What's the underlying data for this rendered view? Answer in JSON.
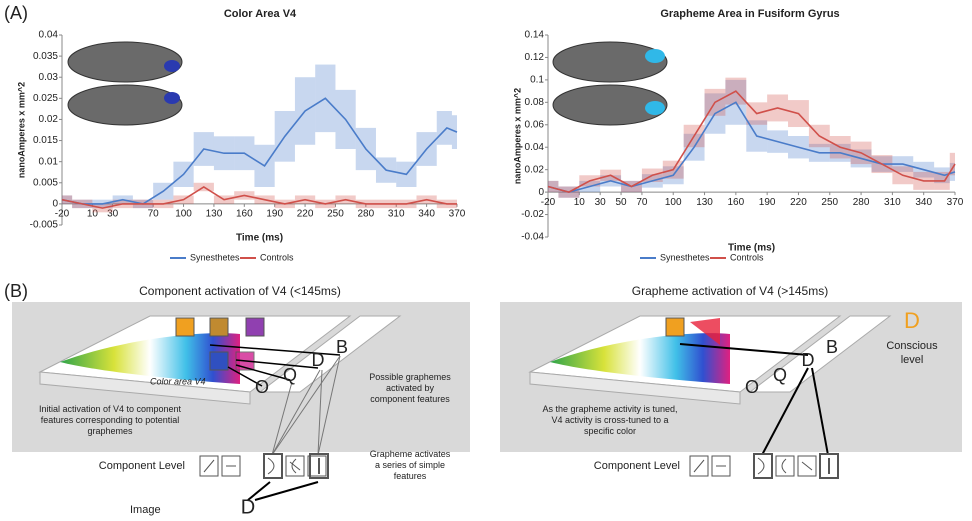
{
  "panel_labels": [
    "(A)",
    "(B)"
  ],
  "chart_data": [
    {
      "type": "line",
      "title": "Color Area V4",
      "y_label": "nanoAmperes x mm^2",
      "x_label": "Time (ms)",
      "x": [
        -20,
        0,
        20,
        40,
        60,
        80,
        100,
        120,
        140,
        160,
        180,
        200,
        220,
        240,
        260,
        280,
        300,
        320,
        340,
        360,
        370
      ],
      "xlim": [
        -20,
        370
      ],
      "xticks": [
        -20,
        10,
        30,
        70,
        100,
        130,
        160,
        190,
        220,
        250,
        280,
        310,
        340,
        370
      ],
      "ylim": [
        -0.005,
        0.04
      ],
      "yticks": [
        -0.005,
        0,
        0.005,
        0.01,
        0.015,
        0.02,
        0.025,
        0.03,
        0.035,
        0.04
      ],
      "series": [
        {
          "name": "Synesthetes",
          "color": "#4a7cc9",
          "values": [
            0.001,
            0,
            0,
            0.001,
            0,
            0.003,
            0.007,
            0.013,
            0.012,
            0.012,
            0.009,
            0.016,
            0.022,
            0.025,
            0.02,
            0.013,
            0.008,
            0.007,
            0.013,
            0.018,
            0.017
          ],
          "errors": [
            0.001,
            0.001,
            0.001,
            0.001,
            0.001,
            0.002,
            0.003,
            0.004,
            0.004,
            0.004,
            0.005,
            0.006,
            0.008,
            0.008,
            0.007,
            0.005,
            0.003,
            0.003,
            0.004,
            0.004,
            0.004
          ]
        },
        {
          "name": "Controls",
          "color": "#d0504a",
          "values": [
            0.001,
            0,
            -0.001,
            0,
            0,
            0,
            0.001,
            0.004,
            0.001,
            0.002,
            0.001,
            0,
            0.001,
            0,
            0.001,
            0,
            0,
            0,
            0.001,
            0,
            0
          ],
          "errors": [
            0.001,
            0.001,
            0.001,
            0.001,
            0.001,
            0.001,
            0.001,
            0.001,
            0.001,
            0.001,
            0.001,
            0.001,
            0.001,
            0.001,
            0.001,
            0.001,
            0.001,
            0.001,
            0.001,
            0.001,
            0.001
          ]
        }
      ]
    },
    {
      "type": "line",
      "title": "Grapheme Area in Fusiform Gyrus",
      "y_label": "nanoAmperes x mm^2",
      "x_label": "Time (ms)",
      "x": [
        -20,
        0,
        20,
        40,
        60,
        80,
        100,
        120,
        140,
        160,
        180,
        200,
        220,
        240,
        260,
        280,
        300,
        320,
        340,
        360,
        370
      ],
      "xlim": [
        -20,
        370
      ],
      "xticks": [
        -20,
        10,
        30,
        50,
        70,
        100,
        130,
        160,
        190,
        220,
        250,
        280,
        310,
        340,
        370
      ],
      "ylim": [
        -0.04,
        0.14
      ],
      "yticks": [
        -0.04,
        -0.02,
        0,
        0.02,
        0.04,
        0.06,
        0.08,
        0.1,
        0.12,
        0.14
      ],
      "series": [
        {
          "name": "Synesthetes",
          "color": "#4a7cc9",
          "values": [
            0.005,
            0,
            0.005,
            0.01,
            0.005,
            0.01,
            0.015,
            0.04,
            0.07,
            0.08,
            0.05,
            0.045,
            0.04,
            0.035,
            0.035,
            0.03,
            0.025,
            0.025,
            0.02,
            0.015,
            0.018
          ],
          "errors": [
            0.005,
            0.005,
            0.005,
            0.005,
            0.005,
            0.006,
            0.008,
            0.012,
            0.018,
            0.02,
            0.014,
            0.01,
            0.01,
            0.008,
            0.008,
            0.008,
            0.007,
            0.007,
            0.007,
            0.007,
            0.008
          ]
        },
        {
          "name": "Controls",
          "color": "#d0504a",
          "values": [
            0.005,
            0,
            0.01,
            0.015,
            0.005,
            0.015,
            0.02,
            0.05,
            0.08,
            0.09,
            0.07,
            0.075,
            0.07,
            0.05,
            0.04,
            0.035,
            0.025,
            0.015,
            0.01,
            0.01,
            0.025
          ],
          "errors": [
            0.005,
            0.005,
            0.005,
            0.005,
            0.005,
            0.006,
            0.008,
            0.01,
            0.012,
            0.012,
            0.01,
            0.012,
            0.012,
            0.01,
            0.01,
            0.01,
            0.008,
            0.008,
            0.008,
            0.008,
            0.01
          ]
        }
      ]
    }
  ],
  "diagram": {
    "left": {
      "title": "Component activation of V4 (<145ms)",
      "area": "Color area V4",
      "letters": [
        "O",
        "Q",
        "D",
        "B"
      ],
      "possible": [
        "Possible graphemes",
        "activated by",
        "component features"
      ],
      "initial": [
        "Initial activation of V4 to component",
        "features corresponding to potential",
        "graphemes"
      ],
      "activates": [
        "Grapheme activates",
        "a series of simple",
        "features"
      ],
      "component_level": "Component Level",
      "image": "Image",
      "image_letter": "D"
    },
    "right": {
      "title": "Grapheme activation of V4 (>145ms)",
      "letters": [
        "O",
        "Q",
        "D",
        "B"
      ],
      "conscious_letter": "D",
      "conscious": [
        "Conscious",
        "level"
      ],
      "tuned": [
        "As the grapheme activity is tuned,",
        "V4 activity is cross-tuned to a",
        "specific color"
      ],
      "component_level": "Component Level"
    }
  }
}
